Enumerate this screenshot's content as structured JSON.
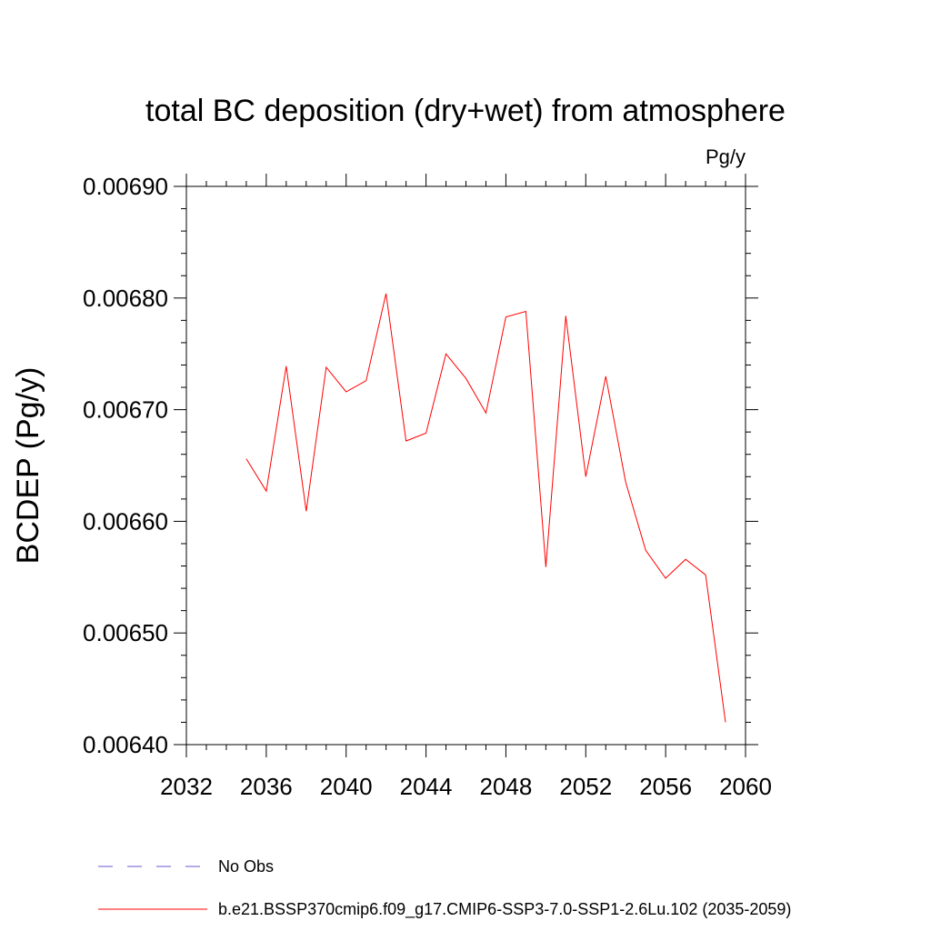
{
  "chart_data": {
    "type": "line",
    "title": "total BC deposition (dry+wet) from atmosphere",
    "units_label": "Pg/y",
    "xlabel": "",
    "ylabel": "BCDEP  (Pg/y)",
    "xlim": [
      2032,
      2060
    ],
    "ylim": [
      0.0064,
      0.0069
    ],
    "x_ticks": [
      2032,
      2036,
      2040,
      2044,
      2048,
      2052,
      2056,
      2060
    ],
    "x_tick_labels": [
      "2032",
      "2036",
      "2040",
      "2044",
      "2048",
      "2052",
      "2056",
      "2060"
    ],
    "y_ticks": [
      0.0064,
      0.0065,
      0.0066,
      0.0067,
      0.0068,
      0.0069
    ],
    "y_tick_labels": [
      "0.00640",
      "0.00650",
      "0.00660",
      "0.00670",
      "0.00680",
      "0.00690"
    ],
    "grid": false,
    "legend_position": "bottom-left, below plot",
    "series": [
      {
        "name": "b.e21.BSSP370cmip6.f09_g17.CMIP6-SSP3-7.0-SSP1-2.6Lu.102 (2035-2059)",
        "color": "#ff0000",
        "style": "solid",
        "x": [
          2035,
          2036,
          2037,
          2038,
          2039,
          2040,
          2041,
          2042,
          2043,
          2044,
          2045,
          2046,
          2047,
          2048,
          2049,
          2050,
          2051,
          2052,
          2053,
          2054,
          2055,
          2056,
          2057,
          2058,
          2059
        ],
        "values": [
          0.006656,
          0.006627,
          0.006739,
          0.006609,
          0.006738,
          0.006716,
          0.006726,
          0.006804,
          0.006672,
          0.006679,
          0.00675,
          0.006728,
          0.006697,
          0.006783,
          0.006788,
          0.006559,
          0.006784,
          0.00664,
          0.00673,
          0.006635,
          0.006574,
          0.006549,
          0.006566,
          0.006552,
          0.00642
        ]
      }
    ],
    "legend": [
      {
        "label": "No Obs",
        "color": "#6a5acd",
        "style": "dashed"
      },
      {
        "label": "b.e21.BSSP370cmip6.f09_g17.CMIP6-SSP3-7.0-SSP1-2.6Lu.102 (2035-2059)",
        "color": "#ff0000",
        "style": "solid"
      }
    ]
  }
}
